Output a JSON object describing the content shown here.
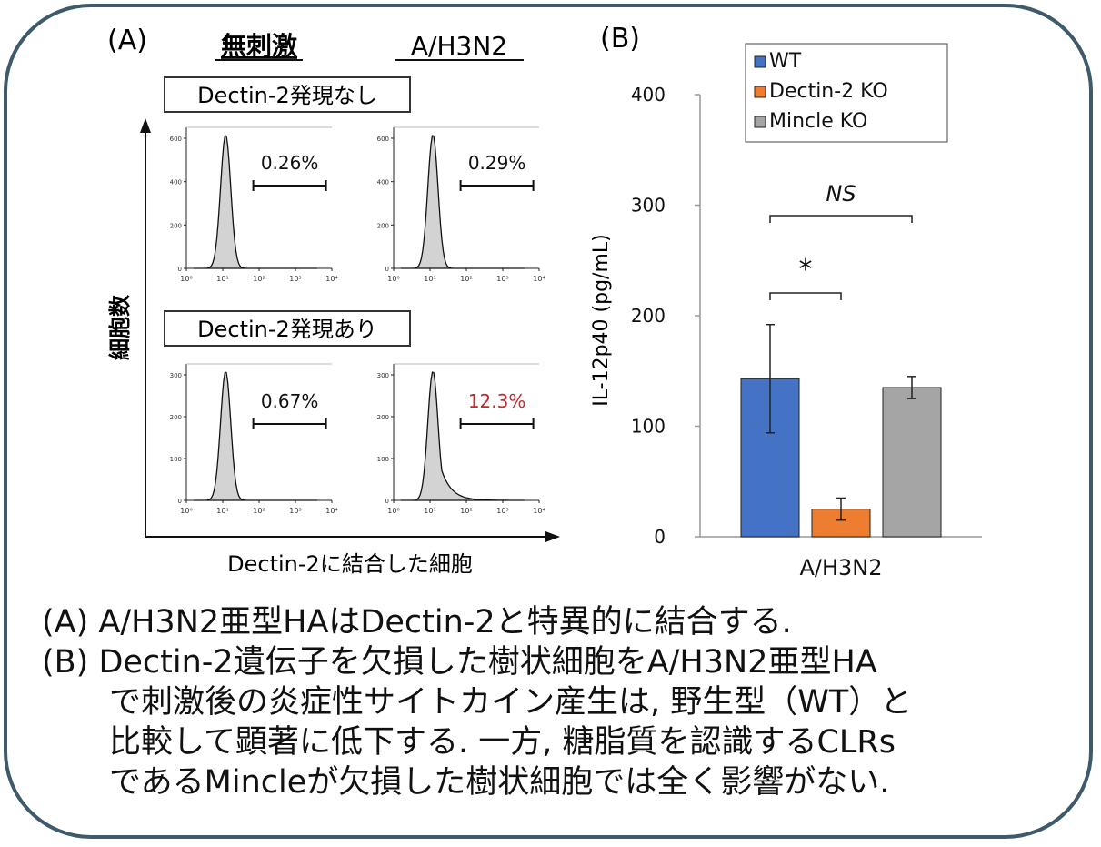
{
  "panel_a": {
    "label": "(A)",
    "col_headers": [
      "無刺激",
      "A/H3N2"
    ],
    "row_labels": [
      "Dectin-2発現なし",
      "Dectin-2発現あり"
    ],
    "y_axis_label": "細胞数",
    "x_axis_label": "Dectin-2に結合した細胞",
    "x_ticks": [
      "10⁰",
      "10¹",
      "10²",
      "10³",
      "10⁴"
    ],
    "top_y_ticks": [
      "600",
      "400",
      "200",
      "0"
    ],
    "bottom_y_ticks": [
      "300",
      "200",
      "100",
      "0"
    ],
    "percentages": [
      "0.26%",
      "0.29%",
      "0.67%",
      "12.3%"
    ],
    "highlight_color": "#c0282d"
  },
  "chart_data": {
    "type": "bar",
    "label": "(B)",
    "categories": [
      "A/H3N2"
    ],
    "series": [
      {
        "name": "WT",
        "values": [
          143
        ],
        "error": [
          49
        ],
        "color": "#4472c4"
      },
      {
        "name": "Dectin-2 KO",
        "values": [
          25
        ],
        "error": [
          10
        ],
        "color": "#ed7d31"
      },
      {
        "name": "Mincle KO",
        "values": [
          135
        ],
        "error": [
          10
        ],
        "color": "#a5a5a5"
      }
    ],
    "ylabel": "IL-12p40 (pg/mL)",
    "xlabel": "",
    "ylim": [
      0,
      400
    ],
    "yticks": [
      0,
      100,
      200,
      300,
      400
    ],
    "legend_placement": "top-right",
    "grid": false,
    "annotations": [
      {
        "text": "*",
        "between": [
          "WT",
          "Dectin-2 KO"
        ]
      },
      {
        "text": "NS",
        "between": [
          "WT",
          "Mincle KO"
        ]
      }
    ]
  },
  "caption": {
    "line1": "(A) A/H3N2亜型HAはDectin-2と特異的に結合する.",
    "line2": "(B) Dectin-2遺伝子を欠損した樹状細胞をA/H3N2亜型HA",
    "line3": "で刺激後の炎症性サイトカイン産生は, 野生型（WT）と",
    "line4": "比較して顕著に低下する. 一方, 糖脂質を認識するCLRs",
    "line5": "であるMincleが欠損した樹状細胞では全く影響がない."
  }
}
